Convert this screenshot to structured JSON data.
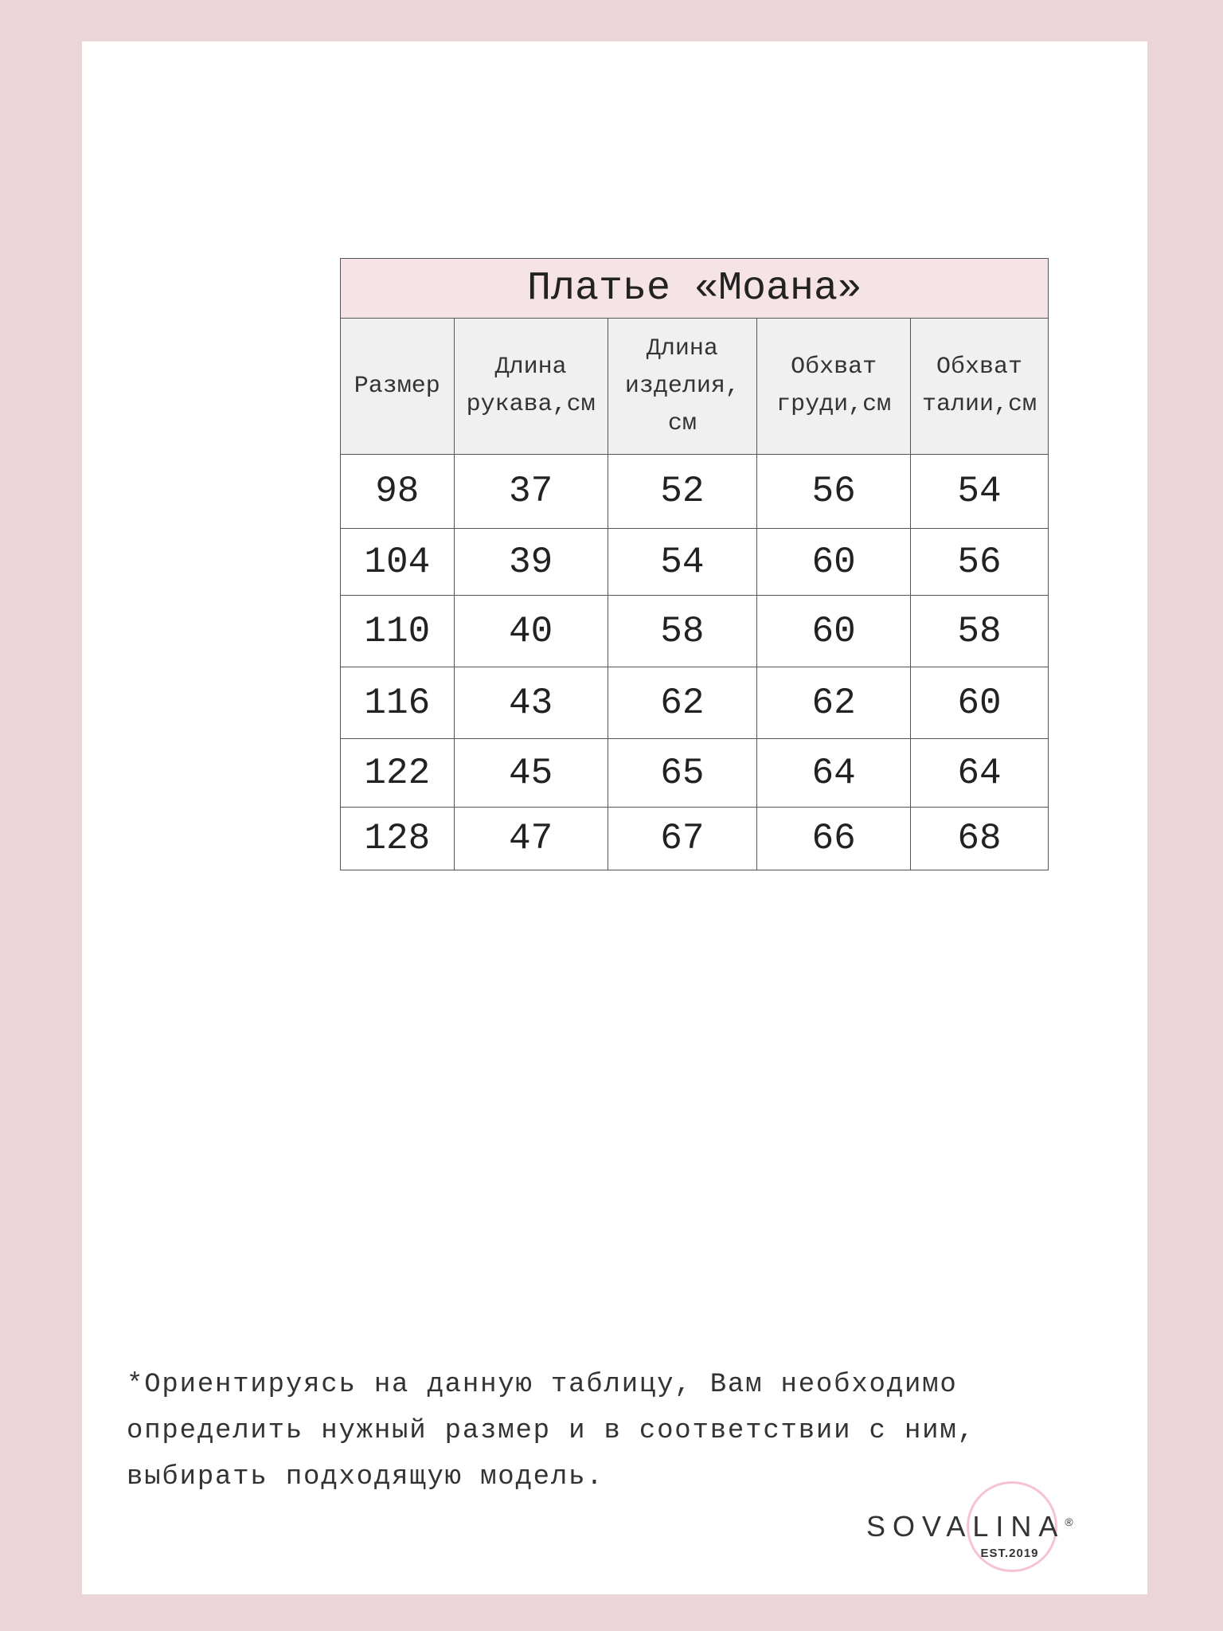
{
  "table": {
    "title": "Платье «Моана»",
    "headers": [
      "Размер",
      "Длина рукава,см",
      "Длина изделия, см",
      "Обхват груди,см",
      "Обхват талии,см"
    ],
    "rows": [
      [
        "98",
        "37",
        "52",
        "56",
        "54"
      ],
      [
        "104",
        "39",
        "54",
        "60",
        "56"
      ],
      [
        "110",
        "40",
        "58",
        "60",
        "58"
      ],
      [
        "116",
        "43",
        "62",
        "62",
        "60"
      ],
      [
        "122",
        "45",
        "65",
        "64",
        "64"
      ],
      [
        "128",
        "47",
        "67",
        "66",
        "68"
      ]
    ]
  },
  "note": {
    "lines": [
      "*Ориентируясь на данную таблицу, Вам необходимо",
      "определить нужный размер и в соответствии с ним,",
      "выбирать подходящую модель."
    ]
  },
  "logo": {
    "brand": "SOVALINA",
    "registered": "®",
    "est": "EST.2019"
  },
  "colors": {
    "background": "#ebd5d9",
    "title_row": "#f6e3e6",
    "header_row": "#f0f0f0",
    "logo_circle": "#f6c3d4"
  }
}
